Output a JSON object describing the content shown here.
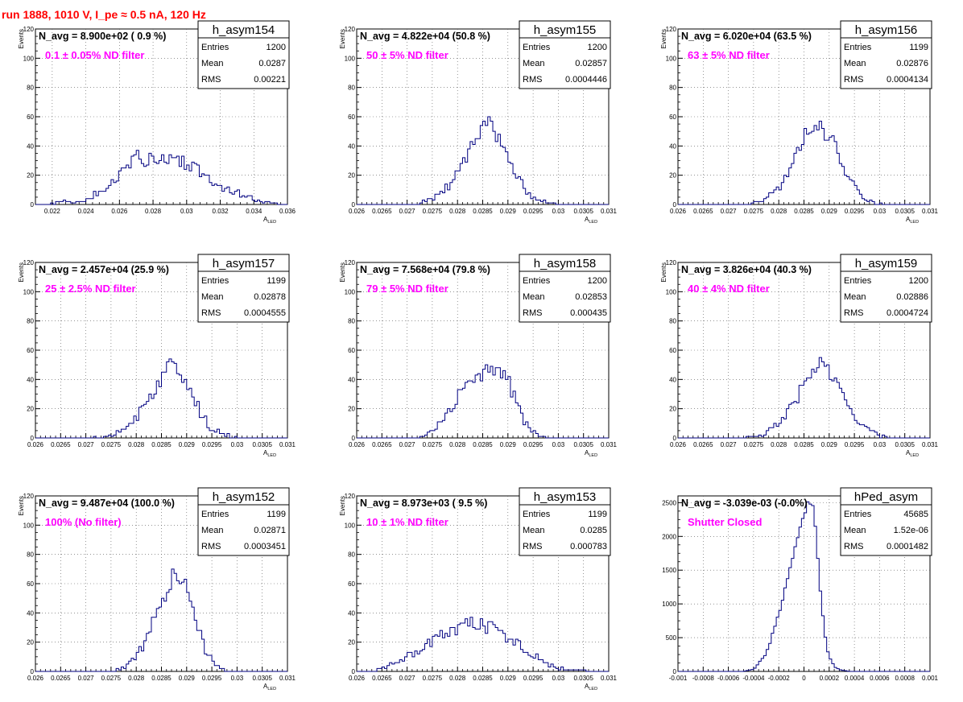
{
  "page": {
    "run_title": "run 1888,  1010 V, I_pe ≈ 0.5 nA, 120 Hz"
  },
  "colors": {
    "histogram_line": "#000080",
    "filter_label": "#ff00ff",
    "run_title": "#ff0000",
    "grid": "#555555"
  },
  "chart_data": [
    {
      "type": "histogram",
      "name": "h_asym154",
      "stats": [
        [
          "Entries",
          "1200"
        ],
        [
          "Mean",
          "0.0287"
        ],
        [
          "RMS",
          "0.00221"
        ]
      ],
      "navg": "N_avg = 8.900e+02 ( 0.9 %)",
      "label": "0.1 ± 0.05% ND filter",
      "xlabel_main": "A",
      "xlabel_sub": "LED",
      "ylabel": "Events",
      "xlim": [
        0.021,
        0.036
      ],
      "ylim": [
        0,
        120
      ],
      "xticks": [
        0.022,
        0.024,
        0.026,
        0.028,
        0.03,
        0.032,
        0.034,
        0.036
      ],
      "xtick_labels": [
        "0.022",
        "0.024",
        "0.026",
        "0.028",
        "0.03",
        "0.032",
        "0.034",
        "0.036"
      ],
      "yticks": [
        0,
        20,
        40,
        60,
        80,
        100,
        120
      ],
      "ytick_labels": [
        "0",
        "20",
        "40",
        "60",
        "80",
        "100",
        "120"
      ],
      "profile": [
        [
          0.0215,
          0
        ],
        [
          0.022,
          1
        ],
        [
          0.023,
          2
        ],
        [
          0.024,
          3
        ],
        [
          0.025,
          10
        ],
        [
          0.026,
          20
        ],
        [
          0.0265,
          25
        ],
        [
          0.027,
          35
        ],
        [
          0.0275,
          30
        ],
        [
          0.028,
          33
        ],
        [
          0.029,
          32
        ],
        [
          0.03,
          28
        ],
        [
          0.031,
          22
        ],
        [
          0.032,
          12
        ],
        [
          0.033,
          8
        ],
        [
          0.034,
          4
        ],
        [
          0.035,
          1
        ],
        [
          0.0355,
          0
        ]
      ],
      "seed": 154
    },
    {
      "type": "histogram",
      "name": "h_asym155",
      "stats": [
        [
          "Entries",
          "1200"
        ],
        [
          "Mean",
          "0.02857"
        ],
        [
          "RMS",
          "0.0004446"
        ]
      ],
      "navg": "N_avg = 4.822e+04 (50.8 %)",
      "label": "50 ± 5% ND filter",
      "xlabel_main": "A",
      "xlabel_sub": "LED",
      "ylabel": "Events",
      "xlim": [
        0.026,
        0.031
      ],
      "ylim": [
        0,
        120
      ],
      "xticks": [
        0.026,
        0.0265,
        0.027,
        0.0275,
        0.028,
        0.0285,
        0.029,
        0.0295,
        0.03,
        0.0305,
        0.031
      ],
      "xtick_labels": [
        "0.026",
        "0.0265",
        "0.027",
        "0.0275",
        "0.028",
        "0.0285",
        "0.029",
        "0.0295",
        "0.03",
        "0.0305",
        "0.031"
      ],
      "yticks": [
        0,
        20,
        40,
        60,
        80,
        100,
        120
      ],
      "ytick_labels": [
        "0",
        "20",
        "40",
        "60",
        "80",
        "100",
        "120"
      ],
      "profile": [
        [
          0.0272,
          0
        ],
        [
          0.0275,
          4
        ],
        [
          0.0278,
          12
        ],
        [
          0.028,
          22
        ],
        [
          0.0282,
          35
        ],
        [
          0.0284,
          48
        ],
        [
          0.0286,
          55
        ],
        [
          0.0288,
          48
        ],
        [
          0.029,
          32
        ],
        [
          0.0292,
          18
        ],
        [
          0.0294,
          8
        ],
        [
          0.0296,
          3
        ],
        [
          0.0298,
          1
        ],
        [
          0.03,
          0
        ]
      ],
      "seed": 155
    },
    {
      "type": "histogram",
      "name": "h_asym156",
      "stats": [
        [
          "Entries",
          "1199"
        ],
        [
          "Mean",
          "0.02876"
        ],
        [
          "RMS",
          "0.0004134"
        ]
      ],
      "navg": "N_avg = 6.020e+04 (63.5 %)",
      "label": "63 ± 5% ND filter",
      "xlabel_main": "A",
      "xlabel_sub": "LED",
      "ylabel": "Events",
      "xlim": [
        0.026,
        0.031
      ],
      "ylim": [
        0,
        120
      ],
      "xticks": [
        0.026,
        0.0265,
        0.027,
        0.0275,
        0.028,
        0.0285,
        0.029,
        0.0295,
        0.03,
        0.0305,
        0.031
      ],
      "xtick_labels": [
        "0.026",
        "0.0265",
        "0.027",
        "0.0275",
        "0.028",
        "0.0285",
        "0.029",
        "0.0295",
        "0.03",
        "0.0305",
        "0.031"
      ],
      "yticks": [
        0,
        20,
        40,
        60,
        80,
        100,
        120
      ],
      "ytick_labels": [
        "0",
        "20",
        "40",
        "60",
        "80",
        "100",
        "120"
      ],
      "profile": [
        [
          0.0274,
          0
        ],
        [
          0.0277,
          3
        ],
        [
          0.028,
          12
        ],
        [
          0.0283,
          28
        ],
        [
          0.0285,
          45
        ],
        [
          0.0287,
          55
        ],
        [
          0.0289,
          52
        ],
        [
          0.0291,
          40
        ],
        [
          0.0293,
          25
        ],
        [
          0.0295,
          12
        ],
        [
          0.0297,
          5
        ],
        [
          0.0299,
          1
        ],
        [
          0.0301,
          0
        ]
      ],
      "seed": 156
    },
    {
      "type": "histogram",
      "name": "h_asym157",
      "stats": [
        [
          "Entries",
          "1199"
        ],
        [
          "Mean",
          "0.02878"
        ],
        [
          "RMS",
          "0.0004555"
        ]
      ],
      "navg": "N_avg = 2.457e+04 (25.9 %)",
      "label": "25 ± 2.5% ND filter",
      "xlabel_main": "A",
      "xlabel_sub": "LED",
      "ylabel": "Events",
      "xlim": [
        0.026,
        0.031
      ],
      "ylim": [
        0,
        120
      ],
      "xticks": [
        0.026,
        0.0265,
        0.027,
        0.0275,
        0.028,
        0.0285,
        0.029,
        0.0295,
        0.03,
        0.0305,
        0.031
      ],
      "xtick_labels": [
        "0.026",
        "0.0265",
        "0.027",
        "0.0275",
        "0.028",
        "0.0285",
        "0.029",
        "0.0295",
        "0.03",
        "0.0305",
        "0.031"
      ],
      "yticks": [
        0,
        20,
        40,
        60,
        80,
        100,
        120
      ],
      "ytick_labels": [
        "0",
        "20",
        "40",
        "60",
        "80",
        "100",
        "120"
      ],
      "profile": [
        [
          0.027,
          0
        ],
        [
          0.0275,
          2
        ],
        [
          0.0278,
          6
        ],
        [
          0.028,
          14
        ],
        [
          0.0283,
          30
        ],
        [
          0.0285,
          42
        ],
        [
          0.0287,
          55
        ],
        [
          0.0289,
          45
        ],
        [
          0.0291,
          30
        ],
        [
          0.0293,
          16
        ],
        [
          0.0295,
          6
        ],
        [
          0.0298,
          2
        ],
        [
          0.03,
          0
        ]
      ],
      "seed": 157
    },
    {
      "type": "histogram",
      "name": "h_asym158",
      "stats": [
        [
          "Entries",
          "1200"
        ],
        [
          "Mean",
          "0.02853"
        ],
        [
          "RMS",
          "0.000435"
        ]
      ],
      "navg": "N_avg = 7.568e+04 (79.8 %)",
      "label": "79 ± 5% ND filter",
      "xlabel_main": "A",
      "xlabel_sub": "LED",
      "ylabel": "Events",
      "xlim": [
        0.026,
        0.031
      ],
      "ylim": [
        0,
        120
      ],
      "xticks": [
        0.026,
        0.0265,
        0.027,
        0.0275,
        0.028,
        0.0285,
        0.029,
        0.0295,
        0.03,
        0.0305,
        0.031
      ],
      "xtick_labels": [
        "0.026",
        "0.0265",
        "0.027",
        "0.0275",
        "0.028",
        "0.0285",
        "0.029",
        "0.0295",
        "0.03",
        "0.0305",
        "0.031"
      ],
      "yticks": [
        0,
        20,
        40,
        60,
        80,
        100,
        120
      ],
      "ytick_labels": [
        "0",
        "20",
        "40",
        "60",
        "80",
        "100",
        "120"
      ],
      "profile": [
        [
          0.0272,
          0
        ],
        [
          0.0275,
          4
        ],
        [
          0.0278,
          15
        ],
        [
          0.028,
          28
        ],
        [
          0.0283,
          40
        ],
        [
          0.0285,
          45
        ],
        [
          0.0288,
          48
        ],
        [
          0.029,
          40
        ],
        [
          0.0292,
          20
        ],
        [
          0.0294,
          8
        ],
        [
          0.0296,
          2
        ],
        [
          0.0298,
          0
        ]
      ],
      "seed": 158
    },
    {
      "type": "histogram",
      "name": "h_asym159",
      "stats": [
        [
          "Entries",
          "1200"
        ],
        [
          "Mean",
          "0.02886"
        ],
        [
          "RMS",
          "0.0004724"
        ]
      ],
      "navg": "N_avg = 3.826e+04 (40.3 %)",
      "label": "40 ± 4% ND filter",
      "xlabel_main": "A",
      "xlabel_sub": "LED",
      "ylabel": "Events",
      "xlim": [
        0.026,
        0.031
      ],
      "ylim": [
        0,
        120
      ],
      "xticks": [
        0.026,
        0.0265,
        0.027,
        0.0275,
        0.028,
        0.0285,
        0.029,
        0.0295,
        0.03,
        0.0305,
        0.031
      ],
      "xtick_labels": [
        "0.026",
        "0.0265",
        "0.027",
        "0.0275",
        "0.028",
        "0.0285",
        "0.029",
        "0.0295",
        "0.03",
        "0.0305",
        "0.031"
      ],
      "yticks": [
        0,
        20,
        40,
        60,
        80,
        100,
        120
      ],
      "ytick_labels": [
        "0",
        "20",
        "40",
        "60",
        "80",
        "100",
        "120"
      ],
      "profile": [
        [
          0.0273,
          0
        ],
        [
          0.0277,
          2
        ],
        [
          0.028,
          10
        ],
        [
          0.0283,
          24
        ],
        [
          0.0286,
          42
        ],
        [
          0.0288,
          52
        ],
        [
          0.029,
          46
        ],
        [
          0.0292,
          32
        ],
        [
          0.0294,
          20
        ],
        [
          0.0296,
          12
        ],
        [
          0.0298,
          5
        ],
        [
          0.03,
          1
        ],
        [
          0.0302,
          0
        ]
      ],
      "seed": 159
    },
    {
      "type": "histogram",
      "name": "h_asym152",
      "stats": [
        [
          "Entries",
          "1199"
        ],
        [
          "Mean",
          "0.02871"
        ],
        [
          "RMS",
          "0.0003451"
        ]
      ],
      "navg": "N_avg = 9.487e+04 (100.0 %)",
      "label": "100% (No filter)",
      "xlabel_main": "A",
      "xlabel_sub": "LED",
      "ylabel": "Events",
      "xlim": [
        0.026,
        0.031
      ],
      "ylim": [
        0,
        120
      ],
      "xticks": [
        0.026,
        0.0265,
        0.027,
        0.0275,
        0.028,
        0.0285,
        0.029,
        0.0295,
        0.03,
        0.0305,
        0.031
      ],
      "xtick_labels": [
        "0.026",
        "0.0265",
        "0.027",
        "0.0275",
        "0.028",
        "0.0285",
        "0.029",
        "0.0295",
        "0.03",
        "0.0305",
        "0.031"
      ],
      "yticks": [
        0,
        20,
        40,
        60,
        80,
        100,
        120
      ],
      "ytick_labels": [
        "0",
        "20",
        "40",
        "60",
        "80",
        "100",
        "120"
      ],
      "profile": [
        [
          0.0275,
          0
        ],
        [
          0.0278,
          3
        ],
        [
          0.028,
          10
        ],
        [
          0.0282,
          22
        ],
        [
          0.0284,
          38
        ],
        [
          0.0286,
          55
        ],
        [
          0.0288,
          70
        ],
        [
          0.029,
          55
        ],
        [
          0.0292,
          32
        ],
        [
          0.0294,
          12
        ],
        [
          0.0296,
          4
        ],
        [
          0.0298,
          0
        ]
      ],
      "seed": 152
    },
    {
      "type": "histogram",
      "name": "h_asym153",
      "stats": [
        [
          "Entries",
          "1199"
        ],
        [
          "Mean",
          "0.0285"
        ],
        [
          "RMS",
          "0.000783"
        ]
      ],
      "navg": "N_avg = 8.973e+03 ( 9.5 %)",
      "label": "10 ± 1% ND filter",
      "xlabel_main": "A",
      "xlabel_sub": "LED",
      "ylabel": "Events",
      "xlim": [
        0.026,
        0.031
      ],
      "ylim": [
        0,
        120
      ],
      "xticks": [
        0.026,
        0.0265,
        0.027,
        0.0275,
        0.028,
        0.0285,
        0.029,
        0.0295,
        0.03,
        0.0305,
        0.031
      ],
      "xtick_labels": [
        "0.026",
        "0.0265",
        "0.027",
        "0.0275",
        "0.028",
        "0.0285",
        "0.029",
        "0.0295",
        "0.03",
        "0.0305",
        "0.031"
      ],
      "yticks": [
        0,
        20,
        40,
        60,
        80,
        100,
        120
      ],
      "ytick_labels": [
        "0",
        "20",
        "40",
        "60",
        "80",
        "100",
        "120"
      ],
      "profile": [
        [
          0.0263,
          0
        ],
        [
          0.0266,
          4
        ],
        [
          0.027,
          10
        ],
        [
          0.0274,
          18
        ],
        [
          0.0278,
          26
        ],
        [
          0.0282,
          32
        ],
        [
          0.0286,
          31
        ],
        [
          0.029,
          24
        ],
        [
          0.0294,
          14
        ],
        [
          0.0297,
          6
        ],
        [
          0.03,
          3
        ],
        [
          0.0303,
          1
        ],
        [
          0.0306,
          0
        ]
      ],
      "seed": 153
    },
    {
      "type": "histogram",
      "name": "hPed_asym",
      "stats": [
        [
          "Entries",
          "45685"
        ],
        [
          "Mean",
          "1.52e-06"
        ],
        [
          "RMS",
          "0.0001482"
        ]
      ],
      "navg": "N_avg = -3.039e-03 (-0.0%)",
      "label": "Shutter Closed",
      "xlabel_main": "",
      "xlabel_sub": "",
      "ylabel": "",
      "xlim": [
        -0.001,
        0.001
      ],
      "ylim": [
        0,
        2600
      ],
      "xticks": [
        -0.001,
        -0.0008,
        -0.0006,
        -0.0004,
        -0.0002,
        0,
        0.0002,
        0.0004,
        0.0006,
        0.0008,
        0.001
      ],
      "xtick_labels": [
        "-0.001",
        "-0.0008",
        "-0.0006",
        "-0.0004",
        "-0.0002",
        "0",
        "0.0002",
        "0.0004",
        "0.0006",
        "0.0008",
        "0.001"
      ],
      "yticks": [
        0,
        500,
        1000,
        1500,
        2000,
        2500
      ],
      "ytick_labels": [
        "0",
        "500",
        "1000",
        "1500",
        "2000",
        "2500"
      ],
      "profile": [
        [
          -0.00048,
          0
        ],
        [
          -0.0004,
          30
        ],
        [
          -0.0003,
          250
        ],
        [
          -0.0002,
          850
        ],
        [
          -0.0001,
          1600
        ],
        [
          -3e-05,
          2100
        ],
        [
          3e-05,
          2500
        ],
        [
          8e-05,
          2400
        ],
        [
          0.00012,
          1400
        ],
        [
          0.00016,
          600
        ],
        [
          0.0002,
          200
        ],
        [
          0.00025,
          60
        ],
        [
          0.0003,
          15
        ],
        [
          0.00036,
          0
        ]
      ],
      "seed": 999
    }
  ]
}
